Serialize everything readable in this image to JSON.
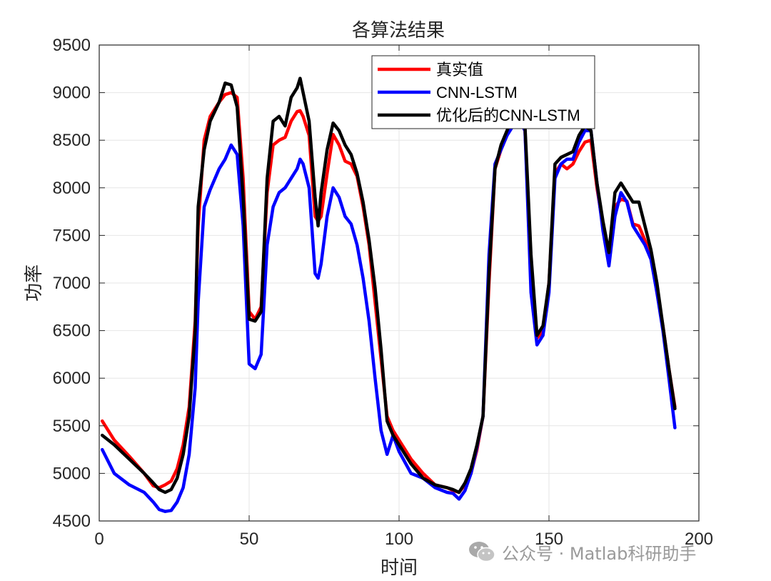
{
  "chart_data": {
    "type": "line",
    "title": "各算法结果",
    "xlabel": "时间",
    "ylabel": "功率",
    "xlim": [
      0,
      200
    ],
    "ylim": [
      4500,
      9500
    ],
    "xticks": [
      0,
      50,
      100,
      150,
      200
    ],
    "yticks": [
      4500,
      5000,
      5500,
      6000,
      6500,
      7000,
      7500,
      8000,
      8500,
      9000,
      9500
    ],
    "grid": true,
    "legend_position": "top-right",
    "x": [
      1,
      5,
      10,
      15,
      18,
      20,
      22,
      24,
      26,
      28,
      30,
      32,
      33,
      35,
      37,
      40,
      42,
      44,
      46,
      48,
      50,
      52,
      54,
      56,
      58,
      60,
      62,
      64,
      66,
      67,
      68,
      70,
      72,
      73,
      74,
      76,
      78,
      80,
      82,
      84,
      86,
      88,
      90,
      92,
      94,
      96,
      98,
      100,
      104,
      108,
      112,
      116,
      118,
      120,
      122,
      124,
      126,
      128,
      130,
      132,
      134,
      136,
      138,
      140,
      142,
      144,
      146,
      148,
      150,
      152,
      154,
      156,
      158,
      160,
      162,
      164,
      166,
      168,
      170,
      172,
      174,
      176,
      178,
      180,
      182,
      184,
      186,
      188,
      190,
      192
    ],
    "series": [
      {
        "name": "真实值",
        "color": "#ff0000",
        "values": [
          5550,
          5350,
          5180,
          5000,
          4870,
          4850,
          4880,
          4920,
          5050,
          5300,
          5700,
          6600,
          7600,
          8500,
          8750,
          8900,
          8980,
          9000,
          8950,
          8100,
          6700,
          6620,
          6750,
          7950,
          8450,
          8500,
          8530,
          8700,
          8800,
          8810,
          8750,
          8550,
          7700,
          7650,
          7700,
          8150,
          8560,
          8450,
          8280,
          8250,
          8120,
          7800,
          7400,
          6800,
          6200,
          5600,
          5450,
          5350,
          5150,
          5000,
          4880,
          4850,
          4820,
          4800,
          4880,
          5000,
          5250,
          5600,
          7000,
          8200,
          8400,
          8550,
          8700,
          8720,
          8600,
          7200,
          6420,
          6500,
          7000,
          8150,
          8250,
          8200,
          8250,
          8380,
          8480,
          8500,
          8000,
          7600,
          7250,
          7800,
          7880,
          7860,
          7620,
          7600,
          7450,
          7300,
          6900,
          6550,
          6100,
          5700
        ]
      },
      {
        "name": "CNN-LSTM",
        "color": "#0000ff",
        "values": [
          5250,
          5000,
          4880,
          4800,
          4700,
          4620,
          4600,
          4610,
          4700,
          4850,
          5200,
          5900,
          6800,
          7800,
          7980,
          8200,
          8300,
          8450,
          8350,
          7600,
          6150,
          6100,
          6250,
          7400,
          7800,
          7950,
          8000,
          8100,
          8200,
          8300,
          8250,
          8000,
          7100,
          7050,
          7200,
          7700,
          8000,
          7900,
          7700,
          7620,
          7400,
          7050,
          6600,
          6000,
          5450,
          5200,
          5400,
          5230,
          5000,
          4950,
          4850,
          4800,
          4790,
          4730,
          4820,
          5000,
          5280,
          5600,
          7300,
          8250,
          8400,
          8550,
          8650,
          8720,
          8600,
          6900,
          6350,
          6450,
          6900,
          8100,
          8250,
          8300,
          8300,
          8480,
          8600,
          8600,
          8050,
          7550,
          7180,
          7700,
          7950,
          7850,
          7600,
          7500,
          7400,
          7250,
          6900,
          6500,
          6000,
          5480
        ]
      },
      {
        "name": "优化后的CNN-LSTM",
        "color": "#000000",
        "values": [
          5400,
          5300,
          5150,
          5000,
          4900,
          4830,
          4800,
          4830,
          4950,
          5200,
          5600,
          6500,
          7800,
          8400,
          8700,
          8900,
          9100,
          9080,
          8850,
          7900,
          6620,
          6600,
          6700,
          8100,
          8700,
          8750,
          8650,
          8950,
          9050,
          9150,
          9000,
          8700,
          7900,
          7600,
          7950,
          8400,
          8680,
          8600,
          8450,
          8350,
          8150,
          7850,
          7450,
          6950,
          6300,
          5550,
          5400,
          5300,
          5100,
          4950,
          4880,
          4850,
          4830,
          4800,
          4900,
          5050,
          5300,
          5600,
          7100,
          8200,
          8450,
          8600,
          8750,
          8720,
          8650,
          7300,
          6450,
          6550,
          7000,
          8250,
          8320,
          8350,
          8380,
          8550,
          8650,
          8600,
          8050,
          7650,
          7320,
          7950,
          8050,
          7950,
          7850,
          7850,
          7600,
          7350,
          7000,
          6550,
          6100,
          5680
        ]
      }
    ]
  },
  "watermark": {
    "text": "公众号 · Matlab科研助手",
    "icon": "wechat-icon"
  }
}
